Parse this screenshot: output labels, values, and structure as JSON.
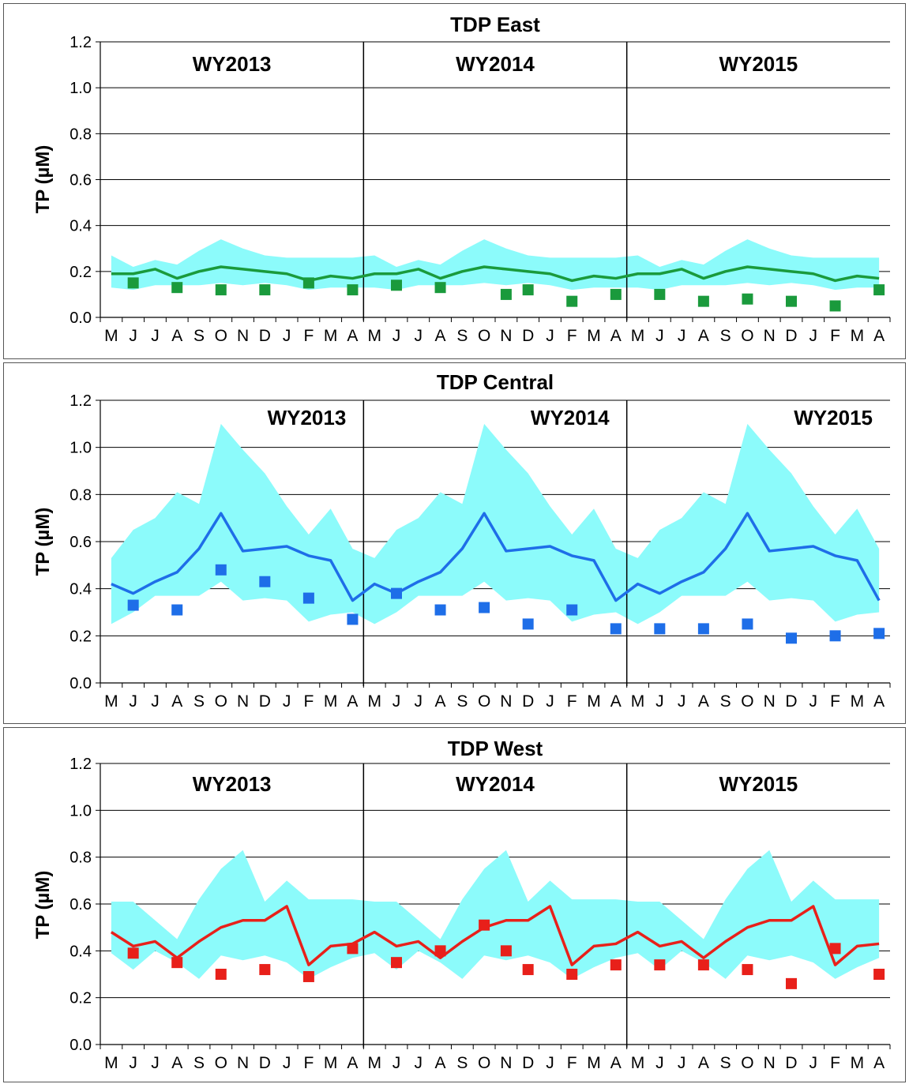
{
  "chart_data": [
    {
      "type": "line",
      "title": "TDP  East",
      "ylabel": "TP (µM)",
      "ylim": [
        0,
        1.2
      ],
      "yticks": [
        "0.0",
        "0.2",
        "0.4",
        "0.6",
        "0.8",
        "1.0",
        "1.2"
      ],
      "x": [
        "M",
        "J",
        "J",
        "A",
        "S",
        "O",
        "N",
        "D",
        "J",
        "F",
        "M",
        "A",
        "M",
        "J",
        "J",
        "A",
        "S",
        "O",
        "N",
        "D",
        "J",
        "F",
        "M",
        "A",
        "M",
        "J",
        "J",
        "A",
        "S",
        "O",
        "N",
        "D",
        "J",
        "F",
        "M",
        "A"
      ],
      "period_labels": [
        "WY2013",
        "WY2014",
        "WY2015"
      ],
      "period_label_align": "center",
      "colors": {
        "line": "#1a9a3c",
        "marker": "#1a9a3c",
        "band": "#8cfbfb"
      },
      "band_upper": [
        0.27,
        0.22,
        0.25,
        0.23,
        0.29,
        0.34,
        0.3,
        0.27,
        0.26,
        0.26,
        0.26,
        0.26
      ],
      "band_lower": [
        0.13,
        0.12,
        0.14,
        0.14,
        0.14,
        0.15,
        0.14,
        0.15,
        0.14,
        0.12,
        0.13,
        0.13
      ],
      "series": [
        {
          "values": [
            0.19,
            0.19,
            0.21,
            0.17,
            0.2,
            0.22,
            0.21,
            0.2,
            0.19,
            0.16,
            0.18,
            0.17,
            0.19,
            0.19,
            0.21,
            0.17,
            0.2,
            0.22,
            0.21,
            0.2,
            0.19,
            0.16,
            0.18,
            0.17,
            0.19,
            0.19,
            0.21,
            0.17,
            0.2,
            0.22,
            0.21,
            0.2,
            0.19,
            0.16,
            0.18,
            0.17
          ]
        },
        {
          "values": [
            null,
            0.15,
            null,
            0.13,
            null,
            0.12,
            null,
            0.12,
            null,
            0.15,
            null,
            0.12,
            null,
            0.14,
            null,
            0.13,
            null,
            null,
            0.1,
            0.12,
            null,
            0.07,
            null,
            0.1,
            null,
            0.1,
            null,
            0.07,
            null,
            0.08,
            null,
            0.07,
            null,
            0.05,
            null,
            0.12
          ]
        }
      ]
    },
    {
      "type": "line",
      "title": "TDP  Central",
      "ylabel": "TP (µM)",
      "ylim": [
        0,
        1.2
      ],
      "yticks": [
        "0.0",
        "0.2",
        "0.4",
        "0.6",
        "0.8",
        "1.0",
        "1.2"
      ],
      "x": [
        "M",
        "J",
        "J",
        "A",
        "S",
        "O",
        "N",
        "D",
        "J",
        "F",
        "M",
        "A",
        "M",
        "J",
        "J",
        "A",
        "S",
        "O",
        "N",
        "D",
        "J",
        "F",
        "M",
        "A",
        "M",
        "J",
        "J",
        "A",
        "S",
        "O",
        "N",
        "D",
        "J",
        "F",
        "M",
        "A"
      ],
      "period_labels": [
        "WY2013",
        "WY2014",
        "WY2015"
      ],
      "period_label_align": "right",
      "colors": {
        "line": "#1e6ee8",
        "marker": "#1e6ee8",
        "band": "#8cfbfb"
      },
      "band_upper": [
        0.53,
        0.65,
        0.7,
        0.81,
        0.76,
        1.1,
        0.99,
        0.89,
        0.75,
        0.63,
        0.74,
        0.57
      ],
      "band_lower": [
        0.25,
        0.3,
        0.37,
        0.37,
        0.37,
        0.43,
        0.35,
        0.36,
        0.35,
        0.26,
        0.29,
        0.3
      ],
      "series": [
        {
          "values": [
            0.42,
            0.38,
            0.43,
            0.47,
            0.57,
            0.72,
            0.56,
            0.57,
            0.58,
            0.54,
            0.52,
            0.35,
            0.42,
            0.38,
            0.43,
            0.47,
            0.57,
            0.72,
            0.56,
            0.57,
            0.58,
            0.54,
            0.52,
            0.35,
            0.42,
            0.38,
            0.43,
            0.47,
            0.57,
            0.72,
            0.56,
            0.57,
            0.58,
            0.54,
            0.52,
            0.35
          ]
        },
        {
          "values": [
            null,
            0.33,
            null,
            0.31,
            null,
            0.48,
            null,
            0.43,
            null,
            0.36,
            null,
            0.27,
            null,
            0.38,
            null,
            0.31,
            null,
            0.32,
            null,
            0.25,
            null,
            0.31,
            null,
            0.23,
            null,
            0.23,
            null,
            0.23,
            null,
            0.25,
            null,
            0.19,
            null,
            0.2,
            null,
            0.21
          ]
        }
      ]
    },
    {
      "type": "line",
      "title": "TDP  West",
      "ylabel": "TP (µM)",
      "ylim": [
        0,
        1.2
      ],
      "yticks": [
        "0.0",
        "0.2",
        "0.4",
        "0.6",
        "0.8",
        "1.0",
        "1.2"
      ],
      "x": [
        "M",
        "J",
        "J",
        "A",
        "S",
        "O",
        "N",
        "D",
        "J",
        "F",
        "M",
        "A",
        "M",
        "J",
        "J",
        "A",
        "S",
        "O",
        "N",
        "D",
        "J",
        "F",
        "M",
        "A",
        "M",
        "J",
        "J",
        "A",
        "S",
        "O",
        "N",
        "D",
        "J",
        "F",
        "M",
        "A"
      ],
      "period_labels": [
        "WY2013",
        "WY2014",
        "WY2015"
      ],
      "period_label_align": "center",
      "colors": {
        "line": "#e8201a",
        "marker": "#e8201a",
        "band": "#8cfbfb"
      },
      "band_upper": [
        0.61,
        0.61,
        0.53,
        0.45,
        0.62,
        0.75,
        0.83,
        0.61,
        0.7,
        0.62,
        0.62,
        0.62
      ],
      "band_lower": [
        0.39,
        0.32,
        0.4,
        0.35,
        0.28,
        0.38,
        0.36,
        0.38,
        0.35,
        0.28,
        0.33,
        0.37
      ],
      "series": [
        {
          "values": [
            0.48,
            0.42,
            0.44,
            0.37,
            0.44,
            0.5,
            0.53,
            0.53,
            0.59,
            0.34,
            0.42,
            0.43,
            0.48,
            0.42,
            0.44,
            0.37,
            0.44,
            0.5,
            0.53,
            0.53,
            0.59,
            0.34,
            0.42,
            0.43,
            0.48,
            0.42,
            0.44,
            0.37,
            0.44,
            0.5,
            0.53,
            0.53,
            0.59,
            0.34,
            0.42,
            0.43
          ]
        },
        {
          "values": [
            null,
            0.39,
            null,
            0.35,
            null,
            0.3,
            null,
            0.32,
            null,
            0.29,
            null,
            0.41,
            null,
            0.35,
            null,
            0.4,
            null,
            0.51,
            0.4,
            0.32,
            null,
            0.3,
            null,
            0.34,
            null,
            0.34,
            null,
            0.34,
            null,
            0.32,
            null,
            0.26,
            null,
            0.41,
            null,
            0.3
          ]
        }
      ]
    }
  ]
}
